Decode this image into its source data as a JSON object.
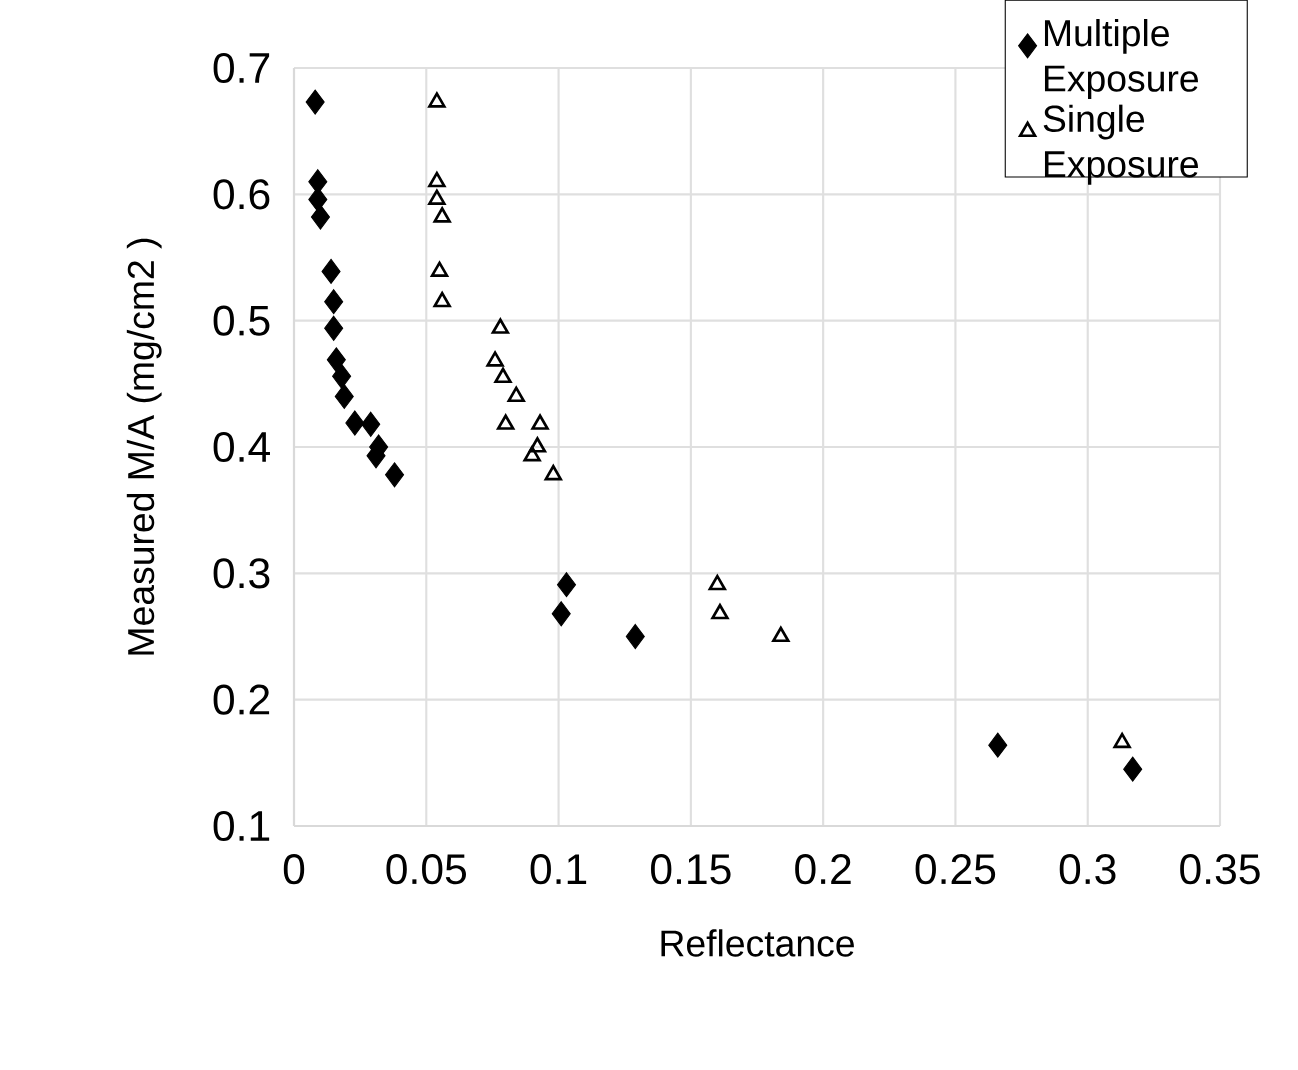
{
  "chart_data": {
    "type": "scatter",
    "xlabel": "Reflectance",
    "ylabel": "Measured M/A (mg/cm2 )",
    "xlim": [
      0,
      0.35
    ],
    "xticks": [
      0,
      0.05,
      0.1,
      0.15,
      0.2,
      0.25,
      0.3,
      0.35
    ],
    "ylim": [
      0.1,
      0.7
    ],
    "yticks": [
      0.1,
      0.2,
      0.3,
      0.4,
      0.5,
      0.6,
      0.7
    ],
    "grid": true,
    "legend": "top right",
    "series": [
      {
        "name": "Multiple Exposure",
        "color": "#000000",
        "marker": "diamond",
        "x": [
          0.008,
          0.009,
          0.009,
          0.01,
          0.014,
          0.015,
          0.015,
          0.016,
          0.018,
          0.019,
          0.023,
          0.029,
          0.032,
          0.031,
          0.038,
          0.103,
          0.101,
          0.129,
          0.266,
          0.317
        ],
        "values": [
          0.673,
          0.61,
          0.596,
          0.582,
          0.539,
          0.515,
          0.494,
          0.469,
          0.456,
          0.44,
          0.419,
          0.418,
          0.4,
          0.393,
          0.378,
          0.291,
          0.268,
          0.25,
          0.164,
          0.145
        ]
      },
      {
        "name": "Single Exposure",
        "color": "#000000",
        "marker": "triangle",
        "x": [
          0.054,
          0.054,
          0.054,
          0.056,
          0.055,
          0.056,
          0.078,
          0.076,
          0.079,
          0.084,
          0.08,
          0.093,
          0.09,
          0.092,
          0.098,
          0.16,
          0.161,
          0.184,
          0.313
        ],
        "values": [
          0.673,
          0.61,
          0.596,
          0.582,
          0.539,
          0.515,
          0.494,
          0.468,
          0.455,
          0.44,
          0.418,
          0.418,
          0.393,
          0.4,
          0.378,
          0.291,
          0.268,
          0.25,
          0.166
        ]
      }
    ]
  }
}
